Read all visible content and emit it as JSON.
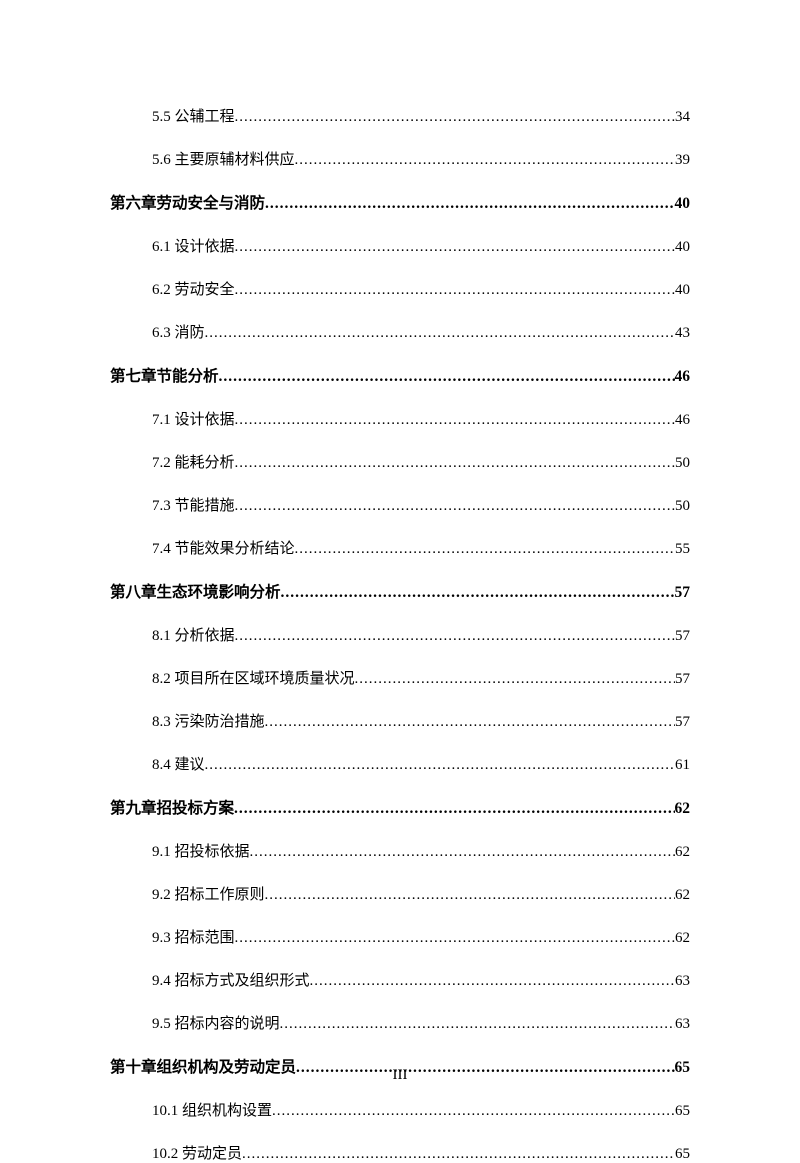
{
  "entries": [
    {
      "level": "section",
      "label": "5.5 公辅工程",
      "page": "34"
    },
    {
      "level": "section",
      "label": "5.6 主要原辅材料供应",
      "page": "39"
    },
    {
      "level": "chapter",
      "label": "第六章劳动安全与消防",
      "page": "40"
    },
    {
      "level": "section",
      "label": "6.1 设计依据",
      "page": "40"
    },
    {
      "level": "section",
      "label": "6.2 劳动安全",
      "page": "40"
    },
    {
      "level": "section",
      "label": "6.3 消防",
      "page": "43"
    },
    {
      "level": "chapter",
      "label": "第七章节能分析",
      "page": "46"
    },
    {
      "level": "section",
      "label": "7.1 设计依据",
      "page": "46"
    },
    {
      "level": "section",
      "label": "7.2 能耗分析",
      "page": "50"
    },
    {
      "level": "section",
      "label": "7.3 节能措施",
      "page": "50"
    },
    {
      "level": "section",
      "label": "7.4 节能效果分析结论",
      "page": "55"
    },
    {
      "level": "chapter",
      "label": "第八章生态环境影响分析",
      "page": "57"
    },
    {
      "level": "section",
      "label": "8.1 分析依据",
      "page": "57"
    },
    {
      "level": "section",
      "label": "8.2 项目所在区域环境质量状况",
      "page": "57"
    },
    {
      "level": "section",
      "label": "8.3 污染防治措施",
      "page": "57"
    },
    {
      "level": "section",
      "label": "8.4 建议",
      "page": "61"
    },
    {
      "level": "chapter",
      "label": "第九章招投标方案",
      "page": "62"
    },
    {
      "level": "section",
      "label": "9.1 招投标依据",
      "page": "62"
    },
    {
      "level": "section",
      "label": "9.2 招标工作原则",
      "page": "62"
    },
    {
      "level": "section",
      "label": "9.3 招标范围",
      "page": "62"
    },
    {
      "level": "section",
      "label": "9.4 招标方式及组织形式",
      "page": "63"
    },
    {
      "level": "section",
      "label": "9.5 招标内容的说明",
      "page": "63"
    },
    {
      "level": "chapter",
      "label": "第十章组织机构及劳动定员",
      "page": "65"
    },
    {
      "level": "section",
      "label": "10.1 组织机构设置",
      "page": "65"
    },
    {
      "level": "section",
      "label": "10.2 劳动定员",
      "page": "65"
    }
  ],
  "footer": "III",
  "dots": "............................................................................................................................................"
}
